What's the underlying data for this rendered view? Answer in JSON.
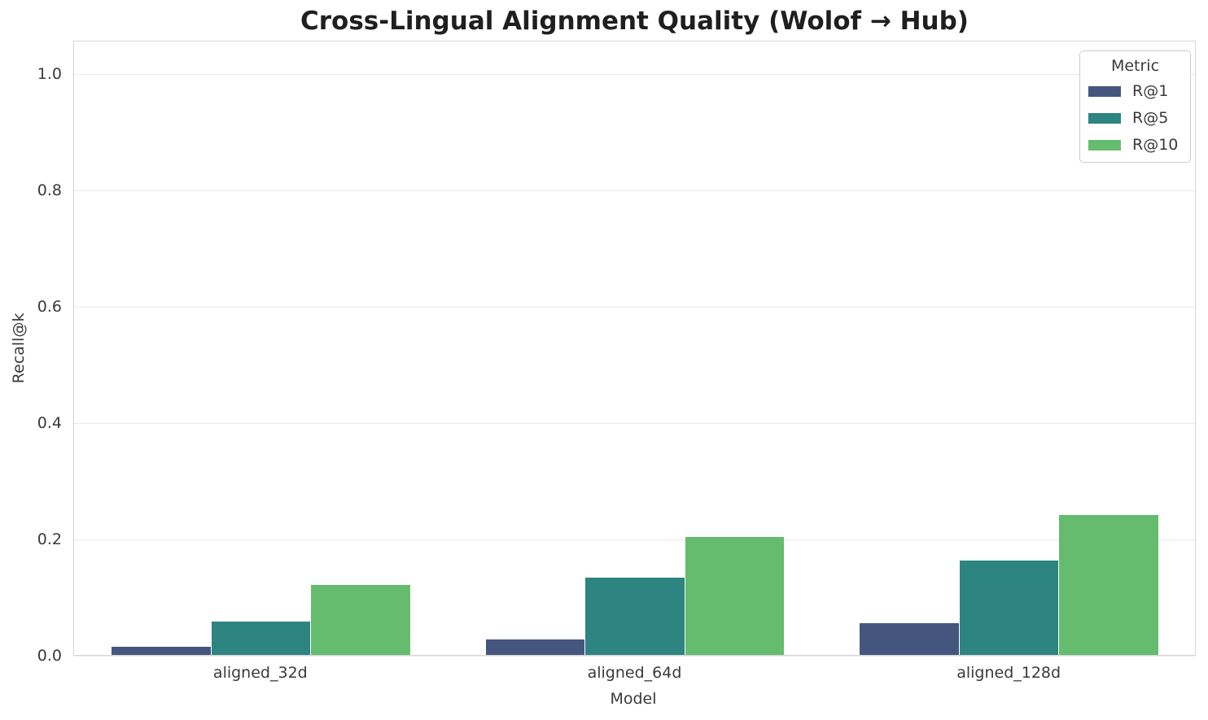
{
  "chart_data": {
    "type": "bar",
    "title": "Cross-Lingual Alignment Quality (Wolof → Hub)",
    "xlabel": "Model",
    "ylabel": "Recall@k",
    "categories": [
      "aligned_32d",
      "aligned_64d",
      "aligned_128d"
    ],
    "series": [
      {
        "name": "R@1",
        "color": "#45567e",
        "values": [
          0.014,
          0.026,
          0.054
        ]
      },
      {
        "name": "R@5",
        "color": "#2e8480",
        "values": [
          0.058,
          0.133,
          0.162
        ]
      },
      {
        "name": "R@10",
        "color": "#65bc6e",
        "values": [
          0.12,
          0.203,
          0.241
        ]
      }
    ],
    "ylim": [
      0,
      1.057
    ],
    "yticks": [
      0.0,
      0.2,
      0.4,
      0.6,
      0.8,
      1.0
    ],
    "ytick_labels": [
      "0.0",
      "0.2",
      "0.4",
      "0.6",
      "0.8",
      "1.0"
    ],
    "legend_title": "Metric",
    "legend_position": "upper right",
    "grid": true,
    "colors": {
      "grid_line": "#eaeaea",
      "spine": "#d6d6d6",
      "title_text": "#1f1f1f",
      "tick_text": "#3a3a3a"
    }
  }
}
